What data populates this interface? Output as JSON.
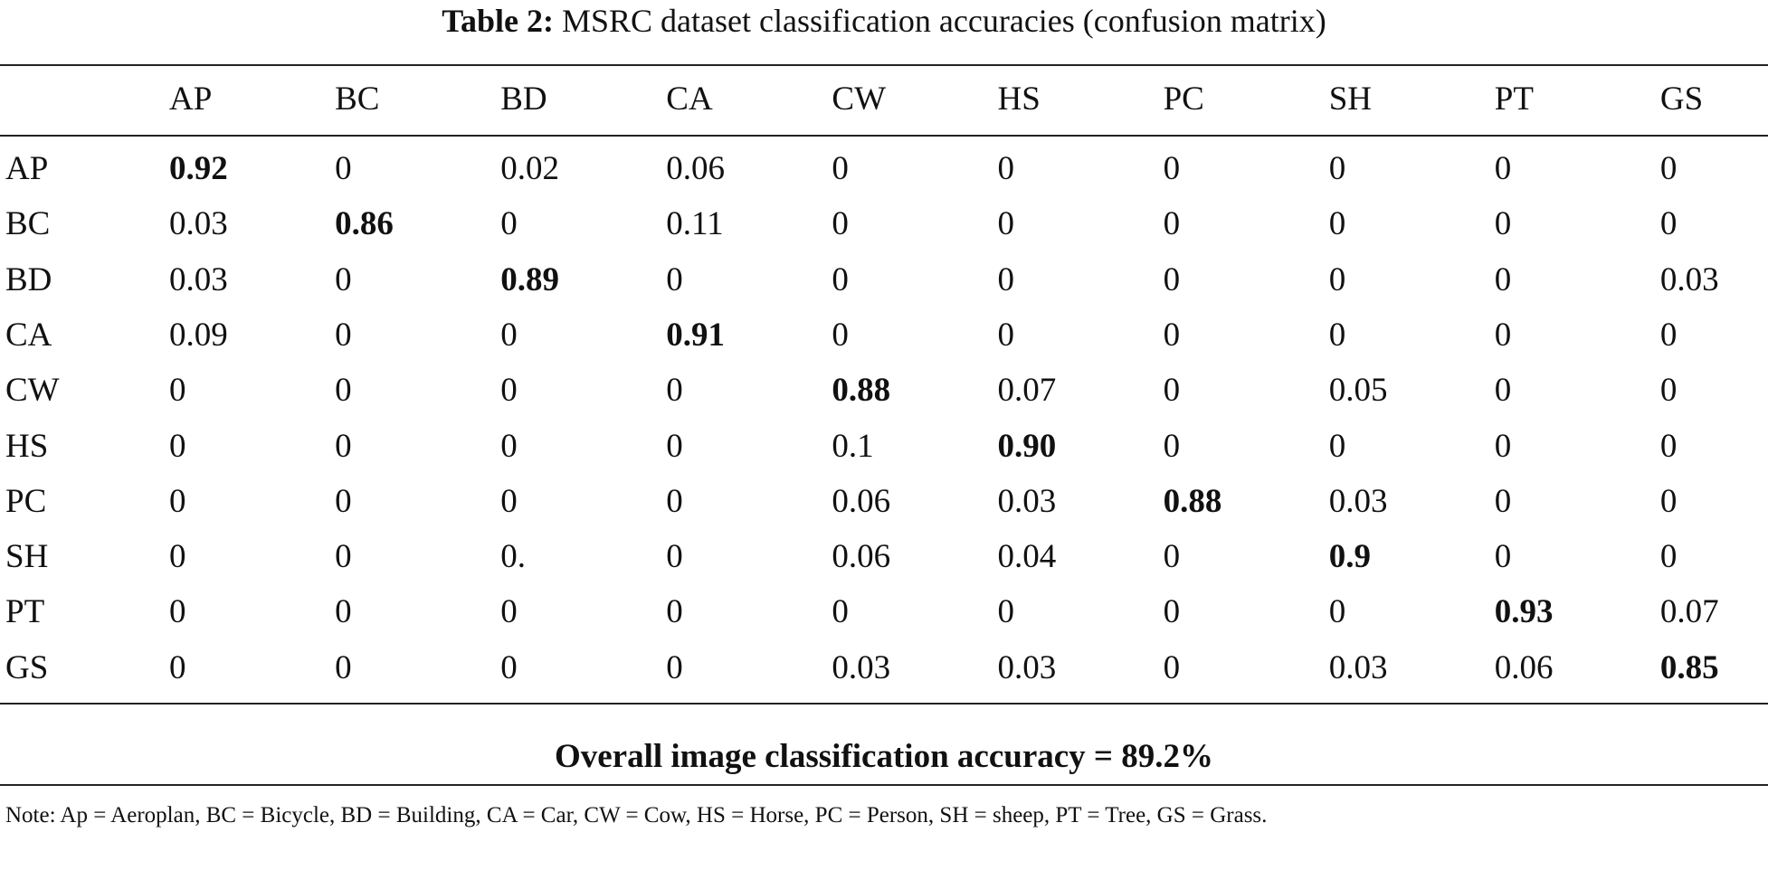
{
  "caption": {
    "label": "Table 2:",
    "text": "MSRC dataset classification accuracies (confusion matrix)"
  },
  "table": {
    "columns": [
      "AP",
      "BC",
      "BD",
      "CA",
      "CW",
      "HS",
      "PC",
      "SH",
      "PT",
      "GS"
    ],
    "rows": [
      {
        "label": "AP",
        "cells": [
          "0.92",
          "0",
          "0.02",
          "0.06",
          "0",
          "0",
          "0",
          "0",
          "0",
          "0"
        ]
      },
      {
        "label": "BC",
        "cells": [
          "0.03",
          "0.86",
          "0",
          "0.11",
          "0",
          "0",
          "0",
          "0",
          "0",
          "0"
        ]
      },
      {
        "label": "BD",
        "cells": [
          "0.03",
          "0",
          "0.89",
          "0",
          "0",
          "0",
          "0",
          "0",
          "0",
          "0.03"
        ]
      },
      {
        "label": "CA",
        "cells": [
          "0.09",
          "0",
          "0",
          "0.91",
          "0",
          "0",
          "0",
          "0",
          "0",
          "0"
        ]
      },
      {
        "label": "CW",
        "cells": [
          "0",
          "0",
          "0",
          "0",
          "0.88",
          "0.07",
          "0",
          "0.05",
          "0",
          "0"
        ]
      },
      {
        "label": "HS",
        "cells": [
          "0",
          "0",
          "0",
          "0",
          "0.1",
          "0.90",
          "0",
          "0",
          "0",
          "0"
        ]
      },
      {
        "label": "PC",
        "cells": [
          "0",
          "0",
          "0",
          "0",
          "0.06",
          "0.03",
          "0.88",
          "0.03",
          "0",
          "0"
        ]
      },
      {
        "label": "SH",
        "cells": [
          "0",
          "0",
          "0.",
          "0",
          "0.06",
          "0.04",
          "0",
          "0.9",
          "0",
          "0"
        ]
      },
      {
        "label": "PT",
        "cells": [
          "0",
          "0",
          "0",
          "0",
          "0",
          "0",
          "0",
          "0",
          "0.93",
          "0.07"
        ]
      },
      {
        "label": "GS",
        "cells": [
          "0",
          "0",
          "0",
          "0",
          "0.03",
          "0.03",
          "0",
          "0.03",
          "0.06",
          "0.85"
        ]
      }
    ]
  },
  "overall": "Overall image classification accuracy = 89.2%",
  "note": "Note: Ap = Aeroplan, BC = Bicycle, BD = Building, CA = Car, CW = Cow, HS = Horse, PC = Person, SH = sheep, PT = Tree, GS = Grass."
}
